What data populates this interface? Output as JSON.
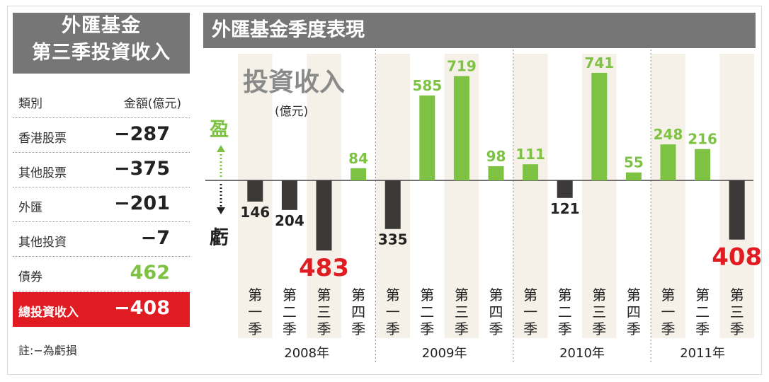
{
  "left_panel": {
    "title_line1": "外匯基金",
    "title_line2": "第三季投資收入",
    "col_category": "類別",
    "col_amount": "金額(億元)",
    "rows": [
      {
        "label": "香港股票",
        "value": "−287"
      },
      {
        "label": "其他股票",
        "value": "−375"
      },
      {
        "label": "外匯",
        "value": "−201"
      },
      {
        "label": "其他投資",
        "value": "−7"
      },
      {
        "label": "債券",
        "value": "462"
      }
    ],
    "total": {
      "label": "總投資收入",
      "value": "−408"
    },
    "note": "註:−為虧損"
  },
  "colors": {
    "header_gray": "#767676",
    "profit_green": "#7dc242",
    "loss_dark": "#3b3838",
    "highlight_red": "#e01b22",
    "column_shade": "#f6f1e8"
  },
  "chart_data": {
    "type": "bar",
    "title": "外匯基金季度表現",
    "ylabel": "投資收入",
    "unit": "(億元)",
    "gain_label": "盈",
    "loss_label": "虧",
    "ylim": [
      -483,
      741
    ],
    "grid": false,
    "years": [
      "2008年",
      "2009年",
      "2010年",
      "2011年"
    ],
    "categories": [
      "第一季",
      "第二季",
      "第三季",
      "第四季",
      "第一季",
      "第二季",
      "第三季",
      "第四季",
      "第一季",
      "第二季",
      "第三季",
      "第四季",
      "第一季",
      "第二季",
      "第三季"
    ],
    "year_of_category": [
      0,
      0,
      0,
      0,
      1,
      1,
      1,
      1,
      2,
      2,
      2,
      2,
      3,
      3,
      3
    ],
    "values": [
      -146,
      -204,
      -483,
      84,
      -335,
      585,
      719,
      98,
      111,
      -121,
      741,
      55,
      248,
      216,
      -408
    ],
    "labels": [
      "146",
      "204",
      "483",
      "84",
      "335",
      "585",
      "719",
      "98",
      "111",
      "121",
      "741",
      "55",
      "248",
      "216",
      "408"
    ],
    "highlighted": [
      2,
      14
    ]
  }
}
